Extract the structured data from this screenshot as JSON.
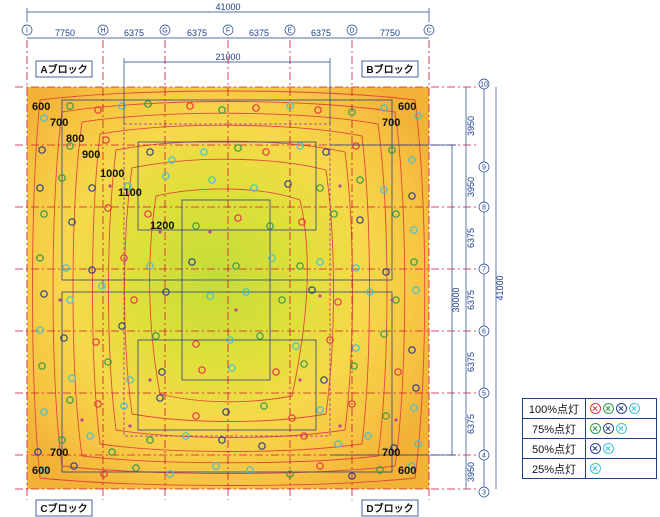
{
  "dimensions": {
    "overall_width": "41000",
    "inner_width": "21000",
    "overall_height": "41000",
    "inner_height": "30000",
    "top_segments": [
      "7750",
      "6375",
      "6375",
      "6375",
      "6375",
      "7750"
    ],
    "right_segments": [
      "3950",
      "3950",
      "6375",
      "6375",
      "6375",
      "6375",
      "3950"
    ]
  },
  "grid": {
    "columns": [
      "I",
      "H",
      "G",
      "F",
      "E",
      "D",
      "C"
    ],
    "rows": [
      "10",
      "9",
      "8",
      "7",
      "6",
      "5",
      "4",
      "3"
    ]
  },
  "blocks": {
    "a": "Aブロック",
    "b": "Bブロック",
    "c": "Cブロック",
    "d": "Dブロック"
  },
  "isolines": {
    "tl600": "600",
    "tl700": "700",
    "tl800": "800",
    "tl900": "900",
    "l1000": "1000",
    "l1100": "1100",
    "c1200": "1200",
    "tr600": "600",
    "tr700": "700",
    "bl700": "700",
    "bl600": "600",
    "br700": "700",
    "br600": "600"
  },
  "legend": {
    "rows": [
      {
        "label": "100%点灯",
        "icons": [
          "red-lamp",
          "green-lamp",
          "navy-lamp",
          "cyan-lamp"
        ]
      },
      {
        "label": "75%点灯",
        "icons": [
          "green-lamp",
          "navy-lamp",
          "cyan-lamp"
        ]
      },
      {
        "label": "50%点灯",
        "icons": [
          "navy-lamp",
          "cyan-lamp"
        ]
      },
      {
        "label": "25%点灯",
        "icons": [
          "cyan-lamp"
        ]
      }
    ],
    "colors": {
      "red-lamp": "#e8344a",
      "green-lamp": "#2d9a4e",
      "navy-lamp": "#2b3f86",
      "cyan-lamp": "#3fc0dc"
    }
  },
  "colors": {
    "plan_outer": "#f4bb3c",
    "plan_inner": "#c9de3a",
    "contour": "#e2483e",
    "dimension": "#1d3f8a",
    "gridline": "#d0153a"
  }
}
